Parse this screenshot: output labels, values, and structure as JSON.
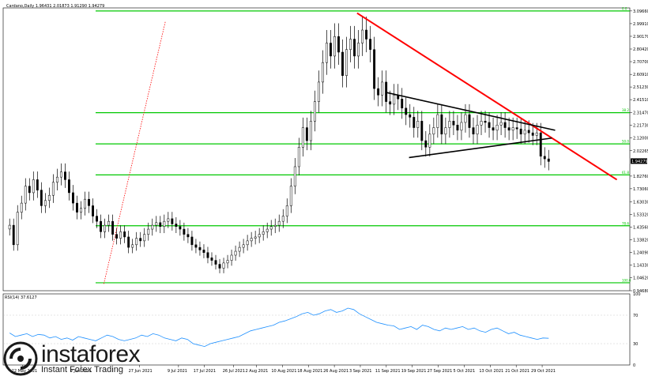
{
  "header": {
    "title": "Cardano,Daily  1.96431 2.01873 1.91290 1.94279",
    "rsi_title": "RSI(14) 37.6127"
  },
  "brand": {
    "name": "instaforex",
    "tagline": "Instant Forex Trading"
  },
  "colors": {
    "fib_lines": "#00c800",
    "trendline_red": "#ff0000",
    "triangle": "#000000",
    "rsi_line": "#1e90ff",
    "price_tag_bg": "#000000",
    "grid_bg": "#ffffff"
  },
  "chart_data": [
    {
      "type": "candlestick",
      "title": "Cardano,Daily",
      "ohlc_last": {
        "open": 1.96431,
        "high": 2.01873,
        "low": 1.9129,
        "close": 1.94279
      },
      "current_price_label": "1.94279",
      "ylim": [
        0.9468,
        3.12
      ],
      "y_ticks": [
        "3.09660",
        "2.99910",
        "2.90170",
        "2.80420",
        "2.70700",
        "2.60910",
        "2.51230",
        "2.41510",
        "2.31470",
        "2.21730",
        "2.12000",
        "2.02265",
        "1.82760",
        "1.73060",
        "1.63030",
        "1.53320",
        "1.43560",
        "1.33820",
        "1.24090",
        "1.14330",
        "1.04620",
        "0.94680"
      ],
      "x_ticks": [
        "22 May 2021",
        "9 Jun 2021",
        "27 Jun 2021",
        "9 Jul 2021",
        "17 Jul 2021",
        "26 Jul 2021",
        "2 Aug 2021",
        "10 Aug 2021",
        "18 Aug 2021",
        "26 Aug 2021",
        "3 Sep 2021",
        "11 Sep 2021",
        "19 Sep 2021",
        "27 Sep 2021",
        "5 Oct 2021",
        "13 Oct 2021",
        "21 Oct 2021",
        "29 Oct 2021"
      ],
      "fib_levels": [
        {
          "label": "0.0",
          "value": 3.0966
        },
        {
          "label": "38.2",
          "value": 2.3147
        },
        {
          "label": "50.0",
          "value": 2.075
        },
        {
          "label": "61.8",
          "value": 1.837
        },
        {
          "label": "78.6",
          "value": 1.446
        },
        {
          "label": "100.0",
          "value": 1.008
        }
      ],
      "trendlines": [
        {
          "name": "red-resistance",
          "from": {
            "date": "2021-09-02",
            "value": 3.08
          },
          "to": {
            "date": "2021-11-21",
            "value": 1.8
          }
        },
        {
          "name": "triangle-upper",
          "from": {
            "date": "2021-09-11",
            "value": 2.47
          },
          "to": {
            "date": "2021-11-02",
            "value": 2.18
          }
        },
        {
          "name": "triangle-lower",
          "from": {
            "date": "2021-09-18",
            "value": 1.97
          },
          "to": {
            "date": "2021-11-01",
            "value": 2.12
          }
        },
        {
          "name": "red-dotted",
          "from": {
            "date": "2021-06-16",
            "value": 1.0
          },
          "to": {
            "date": "2021-07-05",
            "value": 3.02
          }
        }
      ],
      "close_series": [
        1.45,
        1.3,
        1.55,
        1.62,
        1.75,
        1.7,
        1.8,
        1.72,
        1.6,
        1.64,
        1.68,
        1.78,
        1.82,
        1.86,
        1.8,
        1.7,
        1.62,
        1.55,
        1.58,
        1.65,
        1.6,
        1.52,
        1.48,
        1.4,
        1.45,
        1.48,
        1.38,
        1.35,
        1.4,
        1.36,
        1.28,
        1.3,
        1.35,
        1.33,
        1.38,
        1.42,
        1.45,
        1.47,
        1.44,
        1.48,
        1.5,
        1.46,
        1.44,
        1.42,
        1.38,
        1.36,
        1.3,
        1.28,
        1.26,
        1.24,
        1.2,
        1.18,
        1.15,
        1.12,
        1.16,
        1.18,
        1.22,
        1.25,
        1.28,
        1.3,
        1.33,
        1.35,
        1.36,
        1.38,
        1.4,
        1.42,
        1.44,
        1.45,
        1.48,
        1.52,
        1.6,
        1.75,
        1.9,
        2.05,
        2.2,
        2.1,
        2.25,
        2.4,
        2.55,
        2.7,
        2.85,
        2.75,
        2.9,
        2.78,
        2.6,
        2.8,
        2.88,
        2.75,
        2.85,
        2.95,
        2.88,
        2.8,
        2.5,
        2.45,
        2.55,
        2.4,
        2.38,
        2.45,
        2.42,
        2.35,
        2.3,
        2.28,
        2.2,
        2.25,
        2.1,
        2.05,
        2.15,
        2.2,
        2.3,
        2.15,
        2.2,
        2.25,
        2.22,
        2.18,
        2.24,
        2.3,
        2.2,
        2.15,
        2.22,
        2.25,
        2.24,
        2.2,
        2.18,
        2.22,
        2.24,
        2.2,
        2.18,
        2.2,
        2.19,
        2.15,
        2.18,
        2.16,
        2.14,
        2.16,
        1.98,
        1.96,
        1.94
      ],
      "current_value": 1.94279
    },
    {
      "type": "line",
      "title": "RSI(14) 37.6127",
      "ylim": [
        0,
        100
      ],
      "y_ticks": [
        "100",
        "70",
        "30",
        "0"
      ],
      "values": [
        45,
        40,
        42,
        44,
        40,
        43,
        42,
        38,
        40,
        36,
        38,
        35,
        40,
        38,
        36,
        34,
        38,
        42,
        40,
        36,
        34,
        36,
        38,
        42,
        40,
        44,
        42,
        38,
        36,
        34,
        38,
        36,
        30,
        28,
        26,
        30,
        32,
        34,
        36,
        38,
        40,
        44,
        48,
        50,
        52,
        54,
        56,
        60,
        62,
        65,
        68,
        72,
        74,
        70,
        72,
        76,
        78,
        74,
        76,
        80,
        78,
        72,
        68,
        64,
        60,
        58,
        56,
        55,
        50,
        52,
        54,
        50,
        56,
        54,
        50,
        48,
        52,
        50,
        52,
        54,
        50,
        52,
        48,
        46,
        50,
        52,
        48,
        44,
        46,
        42,
        40,
        38,
        36,
        38,
        37.6
      ]
    }
  ]
}
